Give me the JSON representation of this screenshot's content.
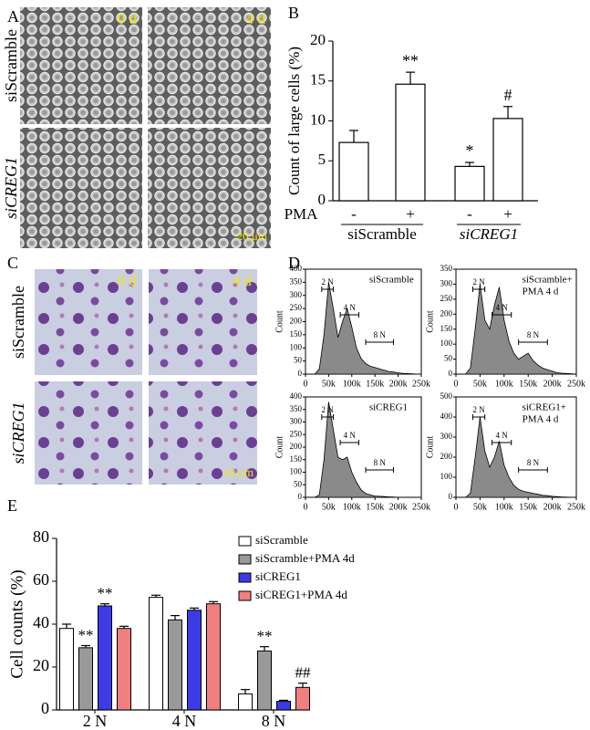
{
  "panel_labels": [
    "A",
    "B",
    "C",
    "D",
    "E"
  ],
  "micrographs": {
    "A": {
      "row_labels": [
        "siScramble",
        "siCREG1"
      ],
      "overlays": [
        "0 d",
        "4 d",
        "20 μm"
      ]
    },
    "C": {
      "row_labels": [
        "siScramble",
        "siCREG1"
      ],
      "overlays": [
        "0 d",
        "4 d",
        "20 μm"
      ]
    }
  },
  "chart_data": [
    {
      "type": "bar",
      "ylabel": "Count of large cells (%)",
      "ylim": [
        0,
        20
      ],
      "yticks": [
        0,
        5,
        10,
        15,
        20
      ],
      "factor_label": "PMA",
      "categories": [
        "-",
        "+",
        "-",
        "+"
      ],
      "groups": [
        {
          "name": "siScramble",
          "span": [
            0,
            1
          ]
        },
        {
          "name": "siCREG1",
          "span": [
            2,
            3
          ]
        }
      ],
      "values": [
        7.3,
        14.6,
        4.3,
        10.3
      ],
      "errors": [
        1.5,
        1.5,
        0.5,
        1.5
      ],
      "color": "#ffffff",
      "annotations": [
        {
          "text": "**",
          "index": 1
        },
        {
          "text": "*",
          "index": 2
        },
        {
          "text": "#",
          "index": 3
        }
      ]
    },
    {
      "type": "area",
      "title_lines": [
        "siScramble"
      ],
      "ylabel": "Count",
      "color": "#8a8a8a",
      "xlim": [
        0,
        250000
      ],
      "ylim": [
        0,
        400
      ],
      "xticks": [
        0,
        {
          "value": 50000,
          "label": "50k"
        },
        {
          "value": 100000,
          "label": "100k"
        },
        {
          "value": 150000,
          "label": "150k"
        },
        {
          "value": 200000,
          "label": "200k"
        },
        {
          "value": 250000,
          "label": "250k"
        }
      ],
      "yticks": [
        0,
        50,
        100,
        150,
        200,
        250,
        300,
        350,
        400
      ],
      "x": [
        20000,
        30000,
        40000,
        50000,
        60000,
        70000,
        80000,
        90000,
        100000,
        110000,
        120000,
        130000,
        140000,
        150000,
        160000,
        170000,
        180000,
        190000,
        200000,
        210000,
        220000,
        230000,
        240000,
        250000
      ],
      "values": [
        0,
        20,
        150,
        350,
        250,
        140,
        200,
        250,
        180,
        100,
        60,
        40,
        30,
        25,
        20,
        15,
        10,
        8,
        5,
        3,
        2,
        1,
        0,
        0
      ],
      "gates": [
        {
          "label": "2 N",
          "range": [
            35000,
            60000
          ]
        },
        {
          "label": "4 N",
          "range": [
            75000,
            115000
          ]
        },
        {
          "label": "8 N",
          "range": [
            130000,
            190000
          ]
        }
      ]
    },
    {
      "type": "area",
      "title_lines": [
        "siScramble+",
        "PMA 4 d"
      ],
      "ylabel": "Count",
      "color": "#8a8a8a",
      "xlim": [
        0,
        250000
      ],
      "ylim": [
        0,
        350
      ],
      "xticks": [
        0,
        {
          "value": 50000,
          "label": "50k"
        },
        {
          "value": 100000,
          "label": "100k"
        },
        {
          "value": 150000,
          "label": "150k"
        },
        {
          "value": 200000,
          "label": "200k"
        },
        {
          "value": 250000,
          "label": "250k"
        }
      ],
      "yticks": [
        0,
        50,
        100,
        150,
        200,
        250,
        300,
        350
      ],
      "x": [
        20000,
        30000,
        40000,
        50000,
        60000,
        70000,
        80000,
        90000,
        100000,
        110000,
        120000,
        130000,
        140000,
        150000,
        160000,
        170000,
        180000,
        190000,
        200000,
        210000,
        220000,
        230000,
        240000,
        250000
      ],
      "values": [
        0,
        20,
        150,
        300,
        180,
        150,
        230,
        290,
        180,
        110,
        70,
        50,
        60,
        70,
        45,
        30,
        20,
        15,
        10,
        5,
        3,
        2,
        1,
        0
      ],
      "gates": [
        {
          "label": "2 N",
          "range": [
            35000,
            60000
          ]
        },
        {
          "label": "4 N",
          "range": [
            75000,
            115000
          ]
        },
        {
          "label": "8 N",
          "range": [
            130000,
            190000
          ]
        }
      ]
    },
    {
      "type": "area",
      "title_lines": [
        "siCREG1"
      ],
      "ylabel": "Count",
      "color": "#8a8a8a",
      "xlim": [
        0,
        250000
      ],
      "ylim": [
        0,
        400
      ],
      "xticks": [
        0,
        {
          "value": 50000,
          "label": "50k"
        },
        {
          "value": 100000,
          "label": "100k"
        },
        {
          "value": 150000,
          "label": "150k"
        },
        {
          "value": 200000,
          "label": "200k"
        },
        {
          "value": 250000,
          "label": "250k"
        }
      ],
      "yticks": [
        0,
        50,
        100,
        150,
        200,
        250,
        300,
        350,
        400
      ],
      "x": [
        20000,
        30000,
        40000,
        50000,
        60000,
        70000,
        80000,
        90000,
        100000,
        110000,
        120000,
        130000,
        140000,
        150000,
        160000,
        170000,
        180000,
        190000,
        200000,
        210000,
        220000,
        230000,
        240000,
        250000
      ],
      "values": [
        0,
        10,
        150,
        380,
        270,
        160,
        150,
        160,
        100,
        60,
        30,
        15,
        10,
        5,
        4,
        3,
        2,
        1,
        0,
        0,
        0,
        0,
        0,
        0
      ],
      "gates": [
        {
          "label": "2 N",
          "range": [
            35000,
            60000
          ]
        },
        {
          "label": "4 N",
          "range": [
            75000,
            115000
          ]
        },
        {
          "label": "8 N",
          "range": [
            130000,
            190000
          ]
        }
      ]
    },
    {
      "type": "area",
      "title_lines": [
        "siCREG1+",
        "PMA 4 d"
      ],
      "ylabel": "Count",
      "color": "#8a8a8a",
      "xlim": [
        0,
        250000
      ],
      "ylim": [
        0,
        500
      ],
      "xticks": [
        0,
        {
          "value": 50000,
          "label": "50k"
        },
        {
          "value": 100000,
          "label": "100k"
        },
        {
          "value": 150000,
          "label": "150k"
        },
        {
          "value": 200000,
          "label": "200k"
        },
        {
          "value": 250000,
          "label": "250k"
        }
      ],
      "yticks": [
        0,
        100,
        200,
        300,
        400,
        500
      ],
      "x": [
        20000,
        30000,
        40000,
        50000,
        60000,
        70000,
        80000,
        90000,
        100000,
        110000,
        120000,
        130000,
        140000,
        150000,
        160000,
        170000,
        180000,
        190000,
        200000,
        210000,
        220000,
        230000,
        240000,
        250000
      ],
      "values": [
        0,
        20,
        200,
        400,
        230,
        150,
        200,
        280,
        160,
        100,
        60,
        40,
        30,
        25,
        20,
        15,
        10,
        8,
        5,
        3,
        2,
        1,
        0,
        0
      ],
      "gates": [
        {
          "label": "2 N",
          "range": [
            35000,
            60000
          ]
        },
        {
          "label": "4 N",
          "range": [
            75000,
            115000
          ]
        },
        {
          "label": "8 N",
          "range": [
            130000,
            190000
          ]
        }
      ]
    },
    {
      "type": "groupedbar",
      "ylabel": "Cell counts (%)",
      "ylim": [
        0,
        80
      ],
      "yticks": [
        0,
        20,
        40,
        60,
        80
      ],
      "categories": [
        "2 N",
        "4 N",
        "8 N"
      ],
      "series": [
        {
          "name": "siScramble",
          "color": "#ffffff",
          "values": [
            38,
            52.5,
            7.5
          ],
          "errors": [
            2,
            1,
            2
          ]
        },
        {
          "name": "siScramble+PMA 4d",
          "color": "#999999",
          "values": [
            29,
            42,
            27.5
          ],
          "errors": [
            1,
            2,
            2
          ]
        },
        {
          "name": "siCREG1",
          "color": "#3c3ce6",
          "values": [
            48.5,
            46.5,
            4
          ],
          "errors": [
            1,
            1,
            0.5
          ]
        },
        {
          "name": "siCREG1+PMA 4d",
          "color": "#f08080",
          "values": [
            38,
            49.5,
            10.5
          ],
          "errors": [
            1,
            1,
            2
          ]
        }
      ],
      "annotations": [
        {
          "text": "**",
          "series": 1,
          "index": 0
        },
        {
          "text": "**",
          "series": 2,
          "index": 0
        },
        {
          "text": "**",
          "series": 1,
          "index": 2
        },
        {
          "text": "##",
          "series": 3,
          "index": 2
        }
      ]
    }
  ]
}
